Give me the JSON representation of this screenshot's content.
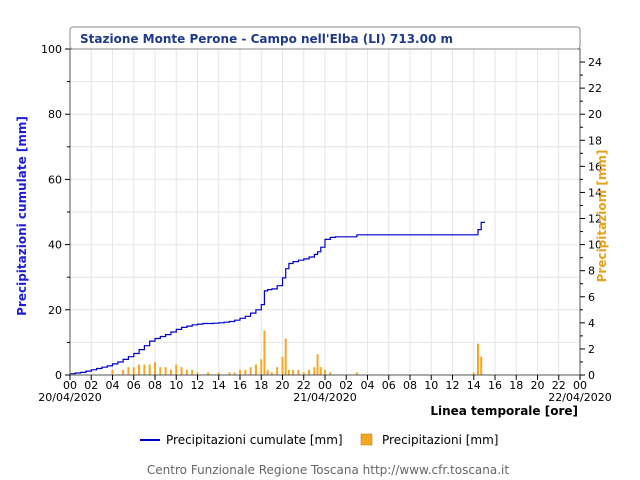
{
  "chart_data": {
    "type": "line",
    "title": "Stazione Monte Perone - Campo nell'Elba (LI) 713.00 m",
    "xlabel": "Linea temporale [ore]",
    "ylabel_left": "Precipitazioni cumulate [mm]",
    "ylabel_right": "Precipitazioni [mm]",
    "ylim_left": [
      0,
      100
    ],
    "ylim_right": [
      0,
      25
    ],
    "yticks_left": [
      "0",
      "20",
      "40",
      "60",
      "80",
      "100"
    ],
    "yticks_right": [
      "0",
      "2",
      "4",
      "6",
      "8",
      "10",
      "12",
      "14",
      "16",
      "18",
      "20",
      "22",
      "24"
    ],
    "xlim_hours": [
      0,
      48
    ],
    "xticks": [
      "00",
      "02",
      "04",
      "06",
      "08",
      "10",
      "12",
      "14",
      "16",
      "18",
      "20",
      "22",
      "00",
      "02",
      "04",
      "06",
      "08",
      "10",
      "12",
      "14",
      "16",
      "18",
      "20",
      "22",
      "00"
    ],
    "date_labels": [
      "20/04/2020",
      "21/04/2020",
      "22/04/2020"
    ],
    "grid": true,
    "legend_position": "bottom",
    "series": [
      {
        "name": "Precipitazioni cumulate [mm]",
        "type": "line",
        "color": "#0000cc",
        "axis": "left",
        "x": [
          0,
          0.5,
          1,
          1.5,
          2,
          2.5,
          3,
          3.5,
          4,
          4.5,
          5,
          5.5,
          6,
          6.5,
          7,
          7.5,
          8,
          8.5,
          9,
          9.5,
          10,
          10.5,
          11,
          11.5,
          12,
          12.5,
          13,
          13.5,
          14,
          14.5,
          15,
          15.5,
          16,
          16.5,
          17,
          17.5,
          18,
          18.3,
          18.6,
          19,
          19.5,
          20,
          20.3,
          20.6,
          21,
          21.5,
          22,
          22.5,
          23,
          23.3,
          23.6,
          24,
          24.5,
          25,
          25.5,
          26,
          26.5,
          27,
          28,
          29,
          30,
          31,
          32,
          33,
          34,
          35,
          36,
          37,
          38,
          38.4,
          38.7,
          39
        ],
        "y": [
          0.4,
          0.6,
          0.8,
          1.2,
          1.6,
          2.0,
          2.4,
          2.8,
          3.4,
          4.0,
          4.8,
          5.6,
          6.6,
          7.8,
          9.0,
          10.4,
          11.2,
          11.8,
          12.4,
          13.2,
          14.0,
          14.6,
          15.0,
          15.4,
          15.6,
          15.8,
          15.8,
          15.9,
          16.0,
          16.2,
          16.4,
          16.8,
          17.4,
          18.0,
          19.0,
          20.0,
          21.6,
          25.8,
          26.2,
          26.4,
          27.4,
          29.8,
          32.6,
          34.2,
          34.8,
          35.2,
          35.6,
          36.2,
          37.0,
          37.8,
          39.2,
          41.6,
          42.2,
          42.4,
          42.4,
          42.4,
          42.4,
          43.0,
          43.0,
          43.0,
          43.0,
          43.0,
          43.0,
          43.0,
          43.0,
          43.0,
          43.0,
          43.0,
          43.0,
          44.6,
          46.8,
          47.0
        ]
      },
      {
        "name": "Precipitazioni [mm]",
        "type": "bar",
        "color": "#f5a623",
        "axis": "right",
        "x": [
          4,
          5,
          5.5,
          6,
          6.5,
          7,
          7.5,
          8,
          8.5,
          9,
          9.5,
          10,
          10.5,
          11,
          11.5,
          12,
          13,
          14,
          15,
          15.5,
          16,
          16.5,
          17,
          17.5,
          18,
          18.3,
          18.6,
          19,
          19.5,
          20,
          20.3,
          20.6,
          21,
          21.5,
          22,
          22.5,
          23,
          23.3,
          23.6,
          24,
          24.5,
          27,
          38,
          38.4,
          38.7
        ],
        "y": [
          0.4,
          0.4,
          0.6,
          0.6,
          0.8,
          0.8,
          0.8,
          1.0,
          0.6,
          0.6,
          0.4,
          0.8,
          0.6,
          0.4,
          0.4,
          0.2,
          0.2,
          0.2,
          0.2,
          0.2,
          0.4,
          0.4,
          0.6,
          0.8,
          1.2,
          3.4,
          0.4,
          0.2,
          0.6,
          1.4,
          2.8,
          0.4,
          0.4,
          0.4,
          0.2,
          0.4,
          0.6,
          1.6,
          0.6,
          0.4,
          0.2,
          0.2,
          0.2,
          2.4,
          1.4
        ]
      }
    ]
  },
  "legend": {
    "line_label": "Precipitazioni cumulate [mm]",
    "bar_label": "Precipitazioni [mm]"
  },
  "footer": "Centro Funzionale Regione Toscana http://www.cfr.toscana.it"
}
